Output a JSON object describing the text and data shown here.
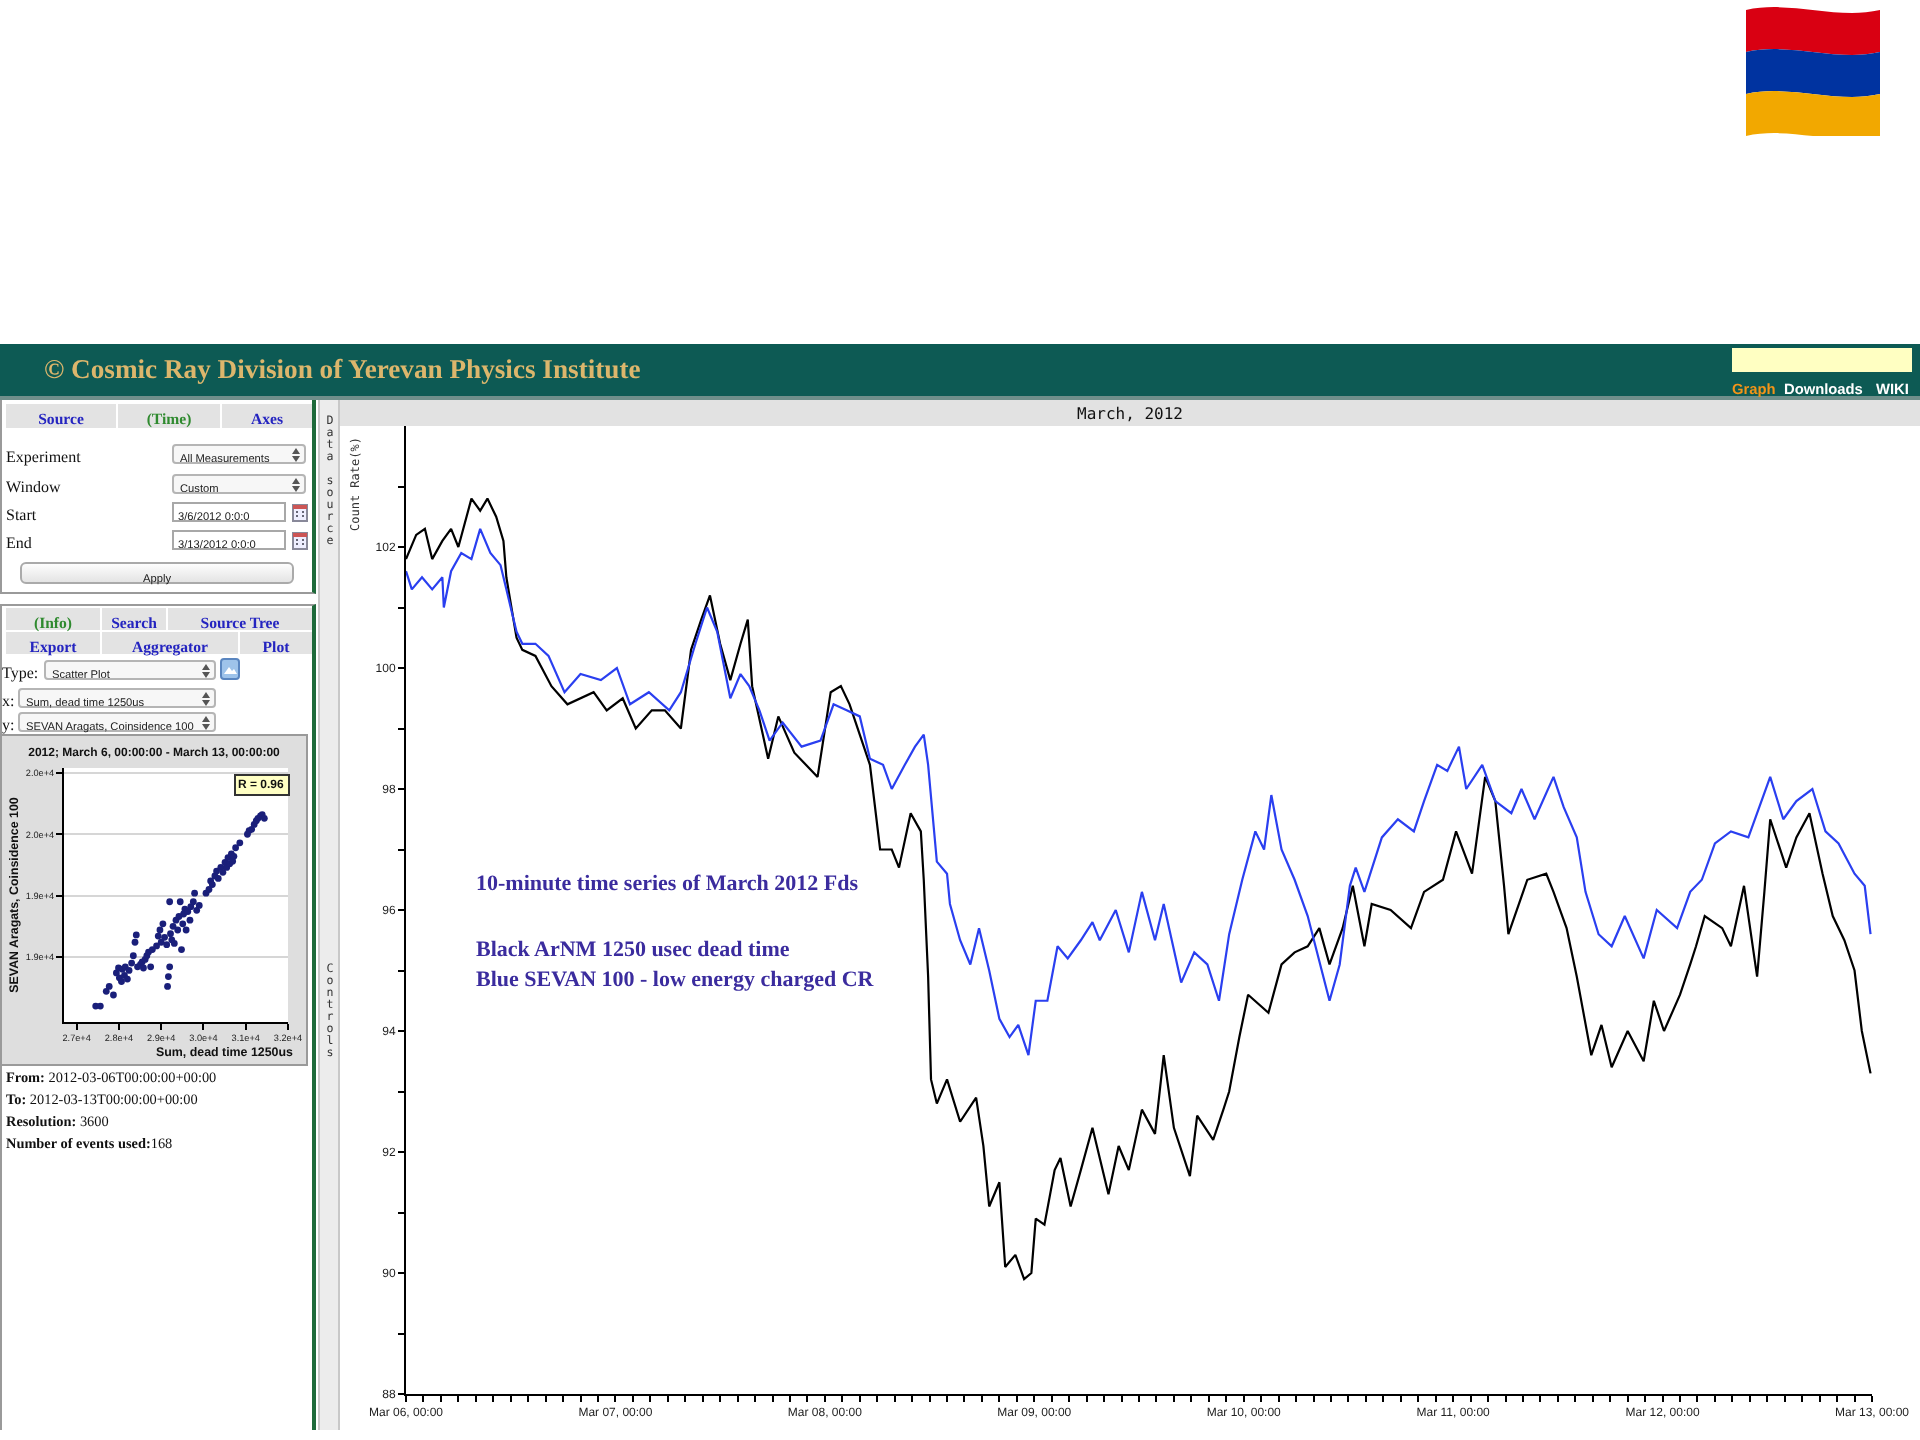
{
  "chart_data": [
    {
      "type": "other",
      "title": "© Cosmic Ray Division of Yerevan Physics Institute",
      "annotations": [
        "Graph",
        "Downloads",
        "WIKI",
        "Source",
        "(Time)",
        "Axes",
        "Experiment",
        "All Measurements",
        "Window",
        "Custom",
        "Start",
        "3/6/2012 0:0:0",
        "End",
        "3/13/2012 0:0:0",
        "Apply",
        "(Info)",
        "Search",
        "Source Tree",
        "Export",
        "Aggregator",
        "Plot",
        "Type:",
        "Scatter Plot",
        "x:",
        "Sum, dead time 1250us",
        "y:",
        "SEVAN Aragats, Coinsidence 100",
        "From: 2012-03-06T00:00:00+00:00",
        "To: 2012-03-13T00:00:00+00:00",
        "Resolution: 3600",
        "Number of events used:168",
        "Data source",
        "Controls"
      ]
    },
    {
      "type": "scatter",
      "title": "2012; March 6, 00:00:00 - March 13, 00:00:00",
      "xlabel": "Sum, dead time 1250us",
      "ylabel": "SEVAN Aragats, Coinsidence 100",
      "annotations": [
        "R = 0.96"
      ],
      "color": "#1a1f7a",
      "marker": "circle",
      "grid": "y",
      "x": [
        27450,
        27560,
        27700,
        27770,
        27870,
        27940,
        27990,
        28010,
        28060,
        28080,
        28130,
        28150,
        28200,
        28240,
        28300,
        28340,
        28380,
        28410,
        28440,
        28510,
        28550,
        28580,
        28620,
        28660,
        28700,
        28750,
        28790,
        28890,
        28930,
        28970,
        29000,
        29040,
        29080,
        29130,
        29150,
        29170,
        29200,
        29220,
        29250,
        29280,
        29310,
        29350,
        29390,
        29420,
        29450,
        29480,
        29510,
        29530,
        29560,
        29590,
        29630,
        29680,
        29700,
        29760,
        29790,
        29840,
        29900,
        30060,
        30130,
        30170,
        30210,
        30270,
        30310,
        30350,
        30410,
        30460,
        30510,
        30550,
        30580,
        30620,
        30660,
        30690,
        30720,
        30760,
        30860,
        31040,
        31080,
        31140,
        31200,
        31250,
        31290,
        31350,
        31390,
        31440,
        29200
      ],
      "values": [
        18600,
        18600,
        18720,
        18760,
        18690,
        18870,
        18910,
        18830,
        18800,
        18900,
        18850,
        18920,
        18820,
        18890,
        18950,
        19010,
        19120,
        19180,
        18920,
        18940,
        18960,
        18910,
        18980,
        19010,
        19040,
        18920,
        19060,
        19090,
        19170,
        19220,
        19120,
        19270,
        19160,
        19100,
        18760,
        18840,
        18920,
        19190,
        19140,
        19250,
        19110,
        19300,
        19220,
        19330,
        19450,
        19060,
        19270,
        19350,
        19390,
        19220,
        19370,
        19300,
        19410,
        19450,
        19520,
        19380,
        19420,
        19520,
        19550,
        19620,
        19590,
        19660,
        19700,
        19640,
        19730,
        19690,
        19770,
        19730,
        19810,
        19760,
        19840,
        19780,
        19820,
        19890,
        19930,
        20000,
        20030,
        20040,
        20080,
        20110,
        20130,
        20150,
        20160,
        20130,
        19450
      ],
      "xlim": [
        26700,
        32000
      ],
      "xticks": [
        {
          "value": 27000,
          "label": "2.7e+4"
        },
        {
          "value": 28000,
          "label": "2.8e+4"
        },
        {
          "value": 29000,
          "label": "2.9e+4"
        },
        {
          "value": 30000,
          "label": "3.0e+4"
        },
        {
          "value": 31000,
          "label": "3.1e+4"
        },
        {
          "value": 32000,
          "label": "3.2e+4"
        }
      ],
      "ylim": [
        18470,
        20540
      ],
      "yticks": [
        {
          "value": 19000,
          "label": "1.9e+4"
        },
        {
          "value": 19500,
          "label": "1.9e+4"
        },
        {
          "value": 20000,
          "label": "2.0e+4"
        },
        {
          "value": 20500,
          "label": "2.0e+4"
        }
      ]
    },
    {
      "type": "line",
      "title": "March, 2012",
      "ylabel": "Count Rate(%)",
      "annotations": [
        "10-minute time series of March 2012 Fds",
        "Black ArNM 1250 usec dead time",
        "Blue SEVAN 100 - low energy charged CR"
      ],
      "series": [
        {
          "color": "#000000",
          "x": [
            "2012-03-06T00:00",
            "2012-03-06T01:10",
            "2012-03-06T02:10",
            "2012-03-06T03:00",
            "2012-03-06T04:10",
            "2012-03-06T05:10",
            "2012-03-06T06:00",
            "2012-03-06T07:30",
            "2012-03-06T08:30",
            "2012-03-06T09:20",
            "2012-03-06T10:20",
            "2012-03-06T11:10",
            "2012-03-06T11:30",
            "2012-03-06T12:40",
            "2012-03-06T13:20",
            "2012-03-06T14:50",
            "2012-03-06T16:40",
            "2012-03-06T18:30",
            "2012-03-06T21:30",
            "2012-03-06T23:00",
            "2012-03-07T00:50",
            "2012-03-07T02:20",
            "2012-03-07T04:10",
            "2012-03-07T05:40",
            "2012-03-07T07:30",
            "2012-03-07T08:40",
            "2012-03-07T09:50",
            "2012-03-07T10:50",
            "2012-03-07T12:00",
            "2012-03-07T13:10",
            "2012-03-07T14:20",
            "2012-03-07T15:10",
            "2012-03-07T15:40",
            "2012-03-07T17:30",
            "2012-03-07T18:40",
            "2012-03-07T20:30",
            "2012-03-07T23:10",
            "2012-03-08T00:40",
            "2012-03-08T01:50",
            "2012-03-08T02:50",
            "2012-03-08T04:00",
            "2012-03-08T05:10",
            "2012-03-08T06:20",
            "2012-03-08T07:40",
            "2012-03-08T08:30",
            "2012-03-08T09:50",
            "2012-03-08T11:00",
            "2012-03-08T11:20",
            "2012-03-08T11:50",
            "2012-03-08T12:10",
            "2012-03-08T12:50",
            "2012-03-08T14:00",
            "2012-03-08T15:30",
            "2012-03-08T17:20",
            "2012-03-08T18:10",
            "2012-03-08T18:50",
            "2012-03-08T20:00",
            "2012-03-08T20:40",
            "2012-03-08T21:50",
            "2012-03-08T22:50",
            "2012-03-08T23:40",
            "2012-03-09T00:10",
            "2012-03-09T01:10",
            "2012-03-09T02:20",
            "2012-03-09T03:00",
            "2012-03-09T04:10",
            "2012-03-09T05:20",
            "2012-03-09T06:40",
            "2012-03-09T07:30",
            "2012-03-09T08:30",
            "2012-03-09T09:40",
            "2012-03-09T10:50",
            "2012-03-09T12:20",
            "2012-03-09T13:50",
            "2012-03-09T14:50",
            "2012-03-09T16:00",
            "2012-03-09T17:50",
            "2012-03-09T18:40",
            "2012-03-09T20:30",
            "2012-03-09T21:40",
            "2012-03-09T22:20",
            "2012-03-09T23:30",
            "2012-03-10T00:30",
            "2012-03-10T02:50",
            "2012-03-10T04:20",
            "2012-03-10T05:50",
            "2012-03-10T07:20",
            "2012-03-10T08:40",
            "2012-03-10T09:50",
            "2012-03-10T11:20",
            "2012-03-10T12:30",
            "2012-03-10T13:50",
            "2012-03-10T14:40",
            "2012-03-10T16:50",
            "2012-03-10T19:10",
            "2012-03-10T20:40",
            "2012-03-10T22:50",
            "2012-03-11T00:20",
            "2012-03-11T02:10",
            "2012-03-11T03:40",
            "2012-03-11T04:50",
            "2012-03-11T05:50",
            "2012-03-11T06:20",
            "2012-03-11T08:30",
            "2012-03-11T10:40",
            "2012-03-11T11:30",
            "2012-03-11T13:00",
            "2012-03-11T14:10",
            "2012-03-11T15:50",
            "2012-03-11T17:00",
            "2012-03-11T18:10",
            "2012-03-11T20:00",
            "2012-03-11T21:50",
            "2012-03-11T23:00",
            "2012-03-12T00:10",
            "2012-03-12T02:00",
            "2012-03-12T03:10",
            "2012-03-12T03:50",
            "2012-03-12T04:50",
            "2012-03-12T06:50",
            "2012-03-12T07:50",
            "2012-03-12T09:20",
            "2012-03-12T10:50",
            "2012-03-12T11:40",
            "2012-03-12T12:20",
            "2012-03-12T14:10",
            "2012-03-12T15:20",
            "2012-03-12T16:50",
            "2012-03-12T18:20",
            "2012-03-12T19:30",
            "2012-03-12T20:50",
            "2012-03-12T22:00",
            "2012-03-12T22:50",
            "2012-03-12T23:50"
          ],
          "values": [
            101.8,
            102.2,
            102.3,
            101.8,
            102.1,
            102.3,
            102.0,
            102.8,
            102.6,
            102.8,
            102.5,
            102.1,
            101.5,
            100.5,
            100.3,
            100.2,
            99.7,
            99.4,
            99.6,
            99.3,
            99.5,
            99.0,
            99.3,
            99.3,
            99.0,
            100.3,
            100.8,
            101.2,
            100.4,
            99.8,
            100.4,
            100.8,
            99.7,
            98.5,
            99.2,
            98.6,
            98.2,
            99.6,
            99.7,
            99.4,
            98.9,
            98.4,
            97.0,
            97.0,
            96.7,
            97.6,
            97.3,
            96.5,
            94.9,
            93.2,
            92.8,
            93.2,
            92.5,
            92.9,
            92.1,
            91.1,
            91.5,
            90.1,
            90.3,
            89.9,
            90.0,
            90.9,
            90.8,
            91.7,
            91.9,
            91.1,
            91.7,
            92.4,
            91.9,
            91.3,
            92.1,
            91.7,
            92.7,
            92.3,
            93.6,
            92.4,
            91.6,
            92.6,
            92.2,
            92.7,
            93.0,
            93.9,
            94.6,
            94.3,
            95.1,
            95.3,
            95.4,
            95.7,
            95.1,
            95.7,
            96.4,
            95.4,
            96.1,
            96.0,
            95.7,
            96.3,
            96.5,
            97.3,
            96.6,
            98.2,
            97.8,
            96.4,
            95.6,
            96.5,
            96.6,
            96.3,
            95.7,
            94.9,
            93.6,
            94.1,
            93.4,
            94.0,
            93.5,
            94.5,
            94.0,
            94.6,
            95.1,
            95.4,
            95.9,
            95.7,
            95.4,
            96.4,
            94.9,
            96.3,
            97.5,
            96.7,
            97.2,
            97.6,
            96.6,
            95.9,
            95.5,
            95.0,
            94.0,
            93.3
          ]
        },
        {
          "color": "#2a3ff0",
          "x": [
            "2012-03-06T00:00",
            "2012-03-06T00:40",
            "2012-03-06T01:50",
            "2012-03-06T03:00",
            "2012-03-06T04:10",
            "2012-03-06T04:20",
            "2012-03-06T05:10",
            "2012-03-06T06:20",
            "2012-03-06T07:30",
            "2012-03-06T08:30",
            "2012-03-06T09:40",
            "2012-03-06T10:50",
            "2012-03-06T11:30",
            "2012-03-06T12:40",
            "2012-03-06T13:20",
            "2012-03-06T14:50",
            "2012-03-06T16:20",
            "2012-03-06T18:10",
            "2012-03-06T20:00",
            "2012-03-06T22:20",
            "2012-03-07T00:10",
            "2012-03-07T01:40",
            "2012-03-07T03:50",
            "2012-03-07T06:10",
            "2012-03-07T07:30",
            "2012-03-07T09:10",
            "2012-03-07T10:30",
            "2012-03-07T11:40",
            "2012-03-07T13:10",
            "2012-03-07T14:20",
            "2012-03-07T15:20",
            "2012-03-07T16:30",
            "2012-03-07T17:40",
            "2012-03-07T19:10",
            "2012-03-07T21:20",
            "2012-03-07T23:30",
            "2012-03-08T01:00",
            "2012-03-08T02:30",
            "2012-03-08T04:00",
            "2012-03-08T05:10",
            "2012-03-08T06:40",
            "2012-03-08T07:40",
            "2012-03-08T09:10",
            "2012-03-08T10:20",
            "2012-03-08T11:20",
            "2012-03-08T11:50",
            "2012-03-08T12:50",
            "2012-03-08T14:00",
            "2012-03-08T14:20",
            "2012-03-08T15:30",
            "2012-03-08T16:40",
            "2012-03-08T17:40",
            "2012-03-08T18:50",
            "2012-03-08T20:00",
            "2012-03-08T21:10",
            "2012-03-08T22:10",
            "2012-03-08T23:20",
            "2012-03-09T00:10",
            "2012-03-09T01:30",
            "2012-03-09T02:40",
            "2012-03-09T03:50",
            "2012-03-09T05:20",
            "2012-03-09T06:40",
            "2012-03-09T07:30",
            "2012-03-09T09:20",
            "2012-03-09T10:50",
            "2012-03-09T12:20",
            "2012-03-09T13:50",
            "2012-03-09T14:50",
            "2012-03-09T16:50",
            "2012-03-09T18:20",
            "2012-03-09T19:50",
            "2012-03-09T21:10",
            "2012-03-09T22:20",
            "2012-03-09T23:50",
            "2012-03-10T01:20",
            "2012-03-10T02:20",
            "2012-03-10T03:10",
            "2012-03-10T04:20",
            "2012-03-10T05:50",
            "2012-03-10T07:20",
            "2012-03-10T09:50",
            "2012-03-10T11:00",
            "2012-03-10T12:10",
            "2012-03-10T12:50",
            "2012-03-10T13:50",
            "2012-03-10T15:50",
            "2012-03-10T17:40",
            "2012-03-10T19:30",
            "2012-03-10T20:40",
            "2012-03-10T22:10",
            "2012-03-10T23:20",
            "2012-03-11T00:40",
            "2012-03-11T01:30",
            "2012-03-11T03:20",
            "2012-03-11T04:50",
            "2012-03-11T06:40",
            "2012-03-11T07:50",
            "2012-03-11T09:20",
            "2012-03-11T11:30",
            "2012-03-11T12:40",
            "2012-03-11T14:10",
            "2012-03-11T15:10",
            "2012-03-11T16:40",
            "2012-03-11T18:10",
            "2012-03-11T19:40",
            "2012-03-11T21:50",
            "2012-03-11T23:20",
            "2012-03-12T01:40",
            "2012-03-12T03:10",
            "2012-03-12T04:30",
            "2012-03-12T06:00",
            "2012-03-12T07:50",
            "2012-03-12T09:50",
            "2012-03-12T12:20",
            "2012-03-12T13:50",
            "2012-03-12T15:20",
            "2012-03-12T17:10",
            "2012-03-12T18:40",
            "2012-03-12T20:10",
            "2012-03-12T22:00",
            "2012-03-12T23:10",
            "2012-03-12T23:50"
          ],
          "values": [
            101.6,
            101.3,
            101.5,
            101.3,
            101.5,
            101.0,
            101.6,
            101.9,
            101.8,
            102.3,
            101.9,
            101.7,
            101.3,
            100.6,
            100.4,
            100.4,
            100.2,
            99.6,
            99.9,
            99.8,
            100.0,
            99.4,
            99.6,
            99.3,
            99.6,
            100.4,
            101.0,
            100.6,
            99.5,
            99.9,
            99.7,
            99.3,
            98.8,
            99.1,
            98.7,
            98.8,
            99.4,
            99.3,
            99.2,
            98.5,
            98.4,
            98.0,
            98.4,
            98.7,
            98.9,
            98.4,
            96.8,
            96.6,
            96.1,
            95.5,
            95.1,
            95.7,
            95.0,
            94.2,
            93.9,
            94.1,
            93.6,
            94.5,
            94.5,
            95.4,
            95.2,
            95.5,
            95.8,
            95.5,
            96.0,
            95.3,
            96.3,
            95.5,
            96.1,
            94.8,
            95.3,
            95.1,
            94.5,
            95.6,
            96.5,
            97.3,
            97.0,
            97.9,
            97.0,
            96.5,
            95.9,
            94.5,
            95.1,
            96.4,
            96.7,
            96.3,
            97.2,
            97.5,
            97.3,
            97.8,
            98.4,
            98.3,
            98.7,
            98.0,
            98.4,
            97.8,
            97.6,
            98.0,
            97.5,
            98.2,
            97.7,
            97.2,
            96.3,
            95.6,
            95.4,
            95.9,
            95.2,
            96.0,
            95.7,
            96.3,
            96.5,
            97.1,
            97.3,
            97.2,
            98.2,
            97.5,
            97.8,
            98.0,
            97.3,
            97.1,
            96.6,
            96.4,
            95.6
          ]
        }
      ],
      "xlim": [
        "2012-03-06",
        "2012-03-13"
      ],
      "xticks": [
        {
          "value": "2012-03-06",
          "label": "Mar 06, 00:00"
        },
        {
          "value": "2012-03-06T02:00",
          "label": null
        },
        {
          "value": "2012-03-06T04:00",
          "label": null
        },
        {
          "value": "2012-03-06T06:00",
          "label": null
        },
        {
          "value": "2012-03-06T08:00",
          "label": null
        },
        {
          "value": "2012-03-06T10:00",
          "label": null
        },
        {
          "value": "2012-03-06T12:00",
          "label": null
        },
        {
          "value": "2012-03-06T14:00",
          "label": null
        },
        {
          "value": "2012-03-06T16:00",
          "label": null
        },
        {
          "value": "2012-03-06T18:00",
          "label": null
        },
        {
          "value": "2012-03-06T20:00",
          "label": null
        },
        {
          "value": "2012-03-06T22:00",
          "label": null
        },
        {
          "value": "2012-03-07",
          "label": "Mar 07, 00:00"
        },
        {
          "value": "2012-03-07T02:00",
          "label": null
        },
        {
          "value": "2012-03-07T04:00",
          "label": null
        },
        {
          "value": "2012-03-07T06:00",
          "label": null
        },
        {
          "value": "2012-03-07T08:00",
          "label": null
        },
        {
          "value": "2012-03-07T10:00",
          "label": null
        },
        {
          "value": "2012-03-07T12:00",
          "label": null
        },
        {
          "value": "2012-03-07T14:00",
          "label": null
        },
        {
          "value": "2012-03-07T16:00",
          "label": null
        },
        {
          "value": "2012-03-07T18:00",
          "label": null
        },
        {
          "value": "2012-03-07T20:00",
          "label": null
        },
        {
          "value": "2012-03-07T22:00",
          "label": null
        },
        {
          "value": "2012-03-08",
          "label": "Mar 08, 00:00"
        },
        {
          "value": "2012-03-08T02:00",
          "label": null
        },
        {
          "value": "2012-03-08T04:00",
          "label": null
        },
        {
          "value": "2012-03-08T06:00",
          "label": null
        },
        {
          "value": "2012-03-08T08:00",
          "label": null
        },
        {
          "value": "2012-03-08T10:00",
          "label": null
        },
        {
          "value": "2012-03-08T12:00",
          "label": null
        },
        {
          "value": "2012-03-08T14:00",
          "label": null
        },
        {
          "value": "2012-03-08T16:00",
          "label": null
        },
        {
          "value": "2012-03-08T18:00",
          "label": null
        },
        {
          "value": "2012-03-08T20:00",
          "label": null
        },
        {
          "value": "2012-03-08T22:00",
          "label": null
        },
        {
          "value": "2012-03-09",
          "label": "Mar 09, 00:00"
        },
        {
          "value": "2012-03-09T02:00",
          "label": null
        },
        {
          "value": "2012-03-09T04:00",
          "label": null
        },
        {
          "value": "2012-03-09T06:00",
          "label": null
        },
        {
          "value": "2012-03-09T08:00",
          "label": null
        },
        {
          "value": "2012-03-09T10:00",
          "label": null
        },
        {
          "value": "2012-03-09T12:00",
          "label": null
        },
        {
          "value": "2012-03-09T14:00",
          "label": null
        },
        {
          "value": "2012-03-09T16:00",
          "label": null
        },
        {
          "value": "2012-03-09T18:00",
          "label": null
        },
        {
          "value": "2012-03-09T20:00",
          "label": null
        },
        {
          "value": "2012-03-09T22:00",
          "label": null
        },
        {
          "value": "2012-03-10",
          "label": "Mar 10, 00:00"
        },
        {
          "value": "2012-03-10T02:00",
          "label": null
        },
        {
          "value": "2012-03-10T04:00",
          "label": null
        },
        {
          "value": "2012-03-10T06:00",
          "label": null
        },
        {
          "value": "2012-03-10T08:00",
          "label": null
        },
        {
          "value": "2012-03-10T10:00",
          "label": null
        },
        {
          "value": "2012-03-10T12:00",
          "label": null
        },
        {
          "value": "2012-03-10T14:00",
          "label": null
        },
        {
          "value": "2012-03-10T16:00",
          "label": null
        },
        {
          "value": "2012-03-10T18:00",
          "label": null
        },
        {
          "value": "2012-03-10T20:00",
          "label": null
        },
        {
          "value": "2012-03-10T22:00",
          "label": null
        },
        {
          "value": "2012-03-11",
          "label": "Mar 11, 00:00"
        },
        {
          "value": "2012-03-11T02:00",
          "label": null
        },
        {
          "value": "2012-03-11T04:00",
          "label": null
        },
        {
          "value": "2012-03-11T06:00",
          "label": null
        },
        {
          "value": "2012-03-11T08:00",
          "label": null
        },
        {
          "value": "2012-03-11T10:00",
          "label": null
        },
        {
          "value": "2012-03-11T12:00",
          "label": null
        },
        {
          "value": "2012-03-11T14:00",
          "label": null
        },
        {
          "value": "2012-03-11T16:00",
          "label": null
        },
        {
          "value": "2012-03-11T18:00",
          "label": null
        },
        {
          "value": "2012-03-11T20:00",
          "label": null
        },
        {
          "value": "2012-03-11T22:00",
          "label": null
        },
        {
          "value": "2012-03-12",
          "label": "Mar 12, 00:00"
        },
        {
          "value": "2012-03-12T02:00",
          "label": null
        },
        {
          "value": "2012-03-12T04:00",
          "label": null
        },
        {
          "value": "2012-03-12T06:00",
          "label": null
        },
        {
          "value": "2012-03-12T08:00",
          "label": null
        },
        {
          "value": "2012-03-12T10:00",
          "label": null
        },
        {
          "value": "2012-03-12T12:00",
          "label": null
        },
        {
          "value": "2012-03-12T14:00",
          "label": null
        },
        {
          "value": "2012-03-12T16:00",
          "label": null
        },
        {
          "value": "2012-03-12T18:00",
          "label": null
        },
        {
          "value": "2012-03-12T20:00",
          "label": null
        },
        {
          "value": "2012-03-12T22:00",
          "label": null
        },
        {
          "value": "2012-03-13",
          "label": "Mar 13, 00:00"
        }
      ],
      "ylim": [
        88,
        104
      ],
      "yticks": [
        88,
        {
          "value": 89,
          "label": null
        },
        90,
        {
          "value": 91,
          "label": null
        },
        92,
        {
          "value": 93,
          "label": null
        },
        94,
        {
          "value": 95,
          "label": null
        },
        96,
        {
          "value": 97,
          "label": null
        },
        98,
        {
          "value": 99,
          "label": null
        },
        100,
        {
          "value": 101,
          "label": null
        },
        102,
        {
          "value": 103,
          "label": null
        }
      ]
    }
  ]
}
